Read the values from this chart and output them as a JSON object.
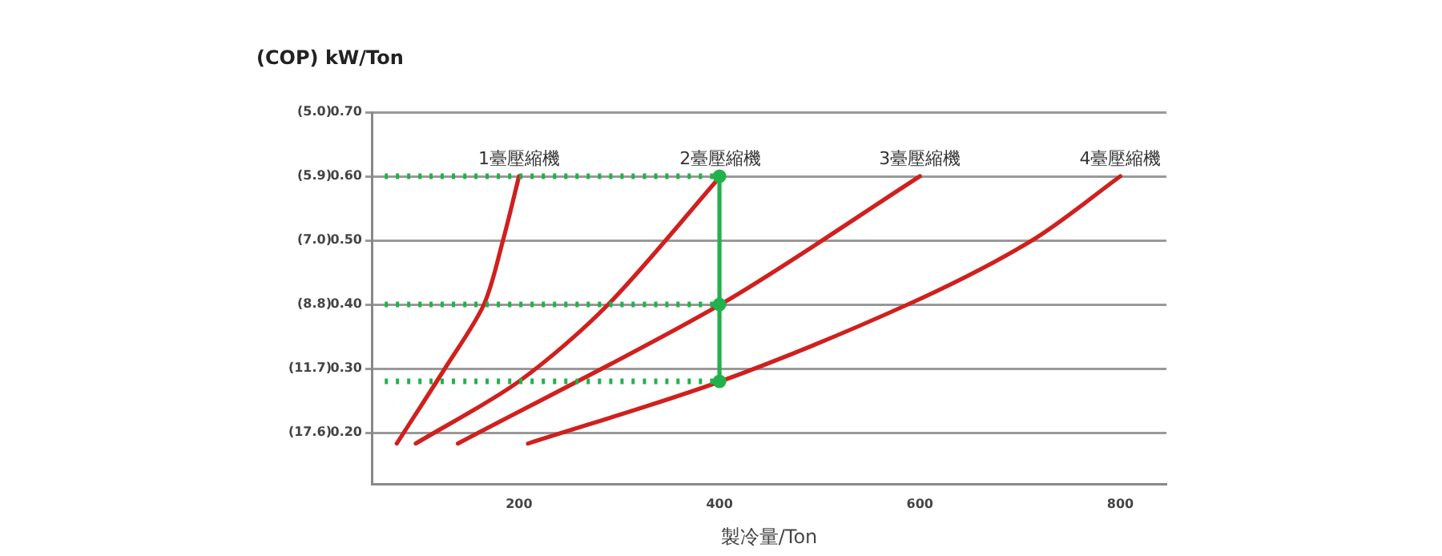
{
  "chart_data": {
    "type": "line",
    "ylabel": "(COP) kW/Ton",
    "xlabel": "製冷量/Ton",
    "grid": "y",
    "marker": "none",
    "line_style": "solid",
    "xlim": [
      53,
      846
    ],
    "xticks": [
      200,
      400,
      600,
      800
    ],
    "ylim": [
      0.12,
      0.7
    ],
    "yticks": [
      {
        "value": 0.7,
        "label": "0.70"
      },
      {
        "value": 0.6,
        "label": "0.60"
      },
      {
        "value": 0.5,
        "label": "0.50"
      },
      {
        "value": 0.4,
        "label": "0.40"
      },
      {
        "value": 0.3,
        "label": "0.30"
      },
      {
        "value": 0.2,
        "label": "0.20"
      }
    ],
    "annotations": [
      "(5.0)",
      "(5.9)",
      "(7.0)",
      "(8.8)",
      "(11.7)",
      "(17.6)"
    ],
    "series": [
      {
        "color": "#22b14c",
        "line_style": "dotted",
        "x": [
          66,
          394
        ],
        "values": [
          0.6,
          0.6
        ]
      },
      {
        "color": "#22b14c",
        "line_style": "dotted",
        "x": [
          66,
          394
        ],
        "values": [
          0.4,
          0.4
        ]
      },
      {
        "color": "#22b14c",
        "line_style": "dotted",
        "x": [
          66,
          394
        ],
        "values": [
          0.28,
          0.28
        ]
      },
      {
        "color": "#22b14c",
        "line_style": "solid",
        "marker": "circle",
        "x": [
          400,
          400,
          400
        ],
        "values": [
          0.28,
          0.4,
          0.6
        ]
      },
      {
        "name": "1臺壓縮機",
        "color": "#d0201e",
        "x": [
          78,
          126,
          165,
          184,
          200
        ],
        "values": [
          0.183,
          0.3,
          0.4,
          0.5,
          0.6
        ]
      },
      {
        "name": "2臺壓縮機",
        "color": "#d0201e",
        "x": [
          97,
          200,
          289,
          401
        ],
        "values": [
          0.183,
          0.28,
          0.4,
          0.6
        ]
      },
      {
        "name": "3臺壓縮機",
        "color": "#d0201e",
        "x": [
          139,
          401,
          600
        ],
        "values": [
          0.183,
          0.4,
          0.6
        ]
      },
      {
        "name": "4臺壓縮機",
        "color": "#d0201e",
        "x": [
          209,
          401,
          588,
          712,
          800
        ],
        "values": [
          0.183,
          0.28,
          0.4,
          0.5,
          0.6
        ]
      }
    ]
  }
}
